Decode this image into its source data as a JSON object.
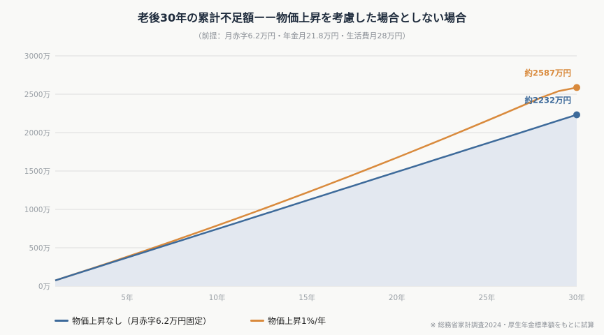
{
  "title": "老後30年の累計不足額ーー物価上昇を考慮した場合としない場合",
  "subtitle": "（前提：月赤字6.2万円・年金月21.8万円・生活費月28万円）",
  "source": "※ 総務省家計調査2024・厚生年金標準額をもとに試算",
  "colors": {
    "series_flat": "#3d6a9a",
    "series_inflation": "#d98a3c",
    "fill": "#e3e8f0",
    "grid": "#dddddd",
    "axis_text": "#9aa0a6"
  },
  "chart_data": {
    "type": "line",
    "x_tick_labels": [
      "5年",
      "10年",
      "15年",
      "20年",
      "25年",
      "30年"
    ],
    "x_ticks": [
      5,
      10,
      15,
      20,
      25,
      30
    ],
    "xlim": [
      1,
      30
    ],
    "y_tick_labels": [
      "0万",
      "500万",
      "1000万",
      "1500万",
      "2000万",
      "2500万",
      "3000万"
    ],
    "y_ticks": [
      0,
      500,
      1000,
      1500,
      2000,
      2500,
      3000
    ],
    "ylim": [
      0,
      3000
    ],
    "grid": true,
    "legend_position": "bottom-left",
    "x": [
      1,
      2,
      3,
      4,
      5,
      6,
      7,
      8,
      9,
      10,
      11,
      12,
      13,
      14,
      15,
      16,
      17,
      18,
      19,
      20,
      21,
      22,
      23,
      24,
      25,
      26,
      27,
      28,
      29,
      30
    ],
    "series": [
      {
        "name": "物価上昇なし（月赤字6.2万円固定）",
        "color": "#3d6a9a",
        "end_label": "約2232万円",
        "values": [
          74,
          149,
          223,
          298,
          372,
          446,
          521,
          595,
          670,
          744,
          818,
          893,
          967,
          1042,
          1116,
          1190,
          1265,
          1339,
          1414,
          1488,
          1562,
          1637,
          1711,
          1786,
          1860,
          1934,
          2009,
          2083,
          2158,
          2232
        ]
      },
      {
        "name": "物価上昇1%/年",
        "color": "#d98a3c",
        "end_label": "約2587万円",
        "values": [
          74,
          150,
          227,
          304,
          383,
          462,
          543,
          624,
          706,
          789,
          873,
          958,
          1044,
          1131,
          1219,
          1308,
          1398,
          1489,
          1581,
          1674,
          1768,
          1863,
          1959,
          2056,
          2154,
          2253,
          2353,
          2454,
          2541,
          2587
        ]
      }
    ]
  }
}
